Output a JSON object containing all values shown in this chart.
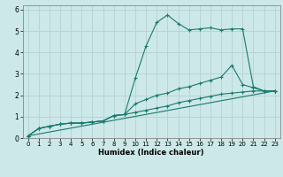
{
  "title": "",
  "xlabel": "Humidex (Indice chaleur)",
  "bg_color": "#cce8e8",
  "grid_color": "#b8d4d4",
  "line_color": "#1a7a6e",
  "xlim": [
    -0.5,
    23.5
  ],
  "ylim": [
    0,
    6.2
  ],
  "xticks": [
    0,
    1,
    2,
    3,
    4,
    5,
    6,
    7,
    8,
    9,
    10,
    11,
    12,
    13,
    14,
    15,
    16,
    17,
    18,
    19,
    20,
    21,
    22,
    23
  ],
  "yticks": [
    0,
    1,
    2,
    3,
    4,
    5,
    6
  ],
  "series": [
    {
      "x": [
        0,
        1,
        2,
        3,
        4,
        5,
        6,
        7,
        8,
        9,
        10,
        11,
        12,
        13,
        14,
        15,
        16,
        17,
        18,
        19,
        20,
        21,
        22,
        23
      ],
      "y": [
        0.1,
        0.45,
        0.55,
        0.65,
        0.7,
        0.7,
        0.75,
        0.8,
        1.05,
        1.1,
        2.8,
        4.3,
        5.4,
        5.75,
        5.35,
        5.05,
        5.1,
        5.15,
        5.05,
        5.1,
        5.1,
        2.4,
        2.2,
        2.2
      ]
    },
    {
      "x": [
        0,
        1,
        2,
        3,
        4,
        5,
        6,
        7,
        8,
        9,
        10,
        11,
        12,
        13,
        14,
        15,
        16,
        17,
        18,
        19,
        20,
        21,
        22,
        23
      ],
      "y": [
        0.1,
        0.45,
        0.55,
        0.65,
        0.7,
        0.7,
        0.75,
        0.8,
        1.05,
        1.1,
        1.6,
        1.8,
        2.0,
        2.1,
        2.3,
        2.4,
        2.55,
        2.7,
        2.85,
        3.4,
        2.5,
        2.35,
        2.2,
        2.2
      ]
    },
    {
      "x": [
        0,
        1,
        2,
        3,
        4,
        5,
        6,
        7,
        8,
        9,
        10,
        11,
        12,
        13,
        14,
        15,
        16,
        17,
        18,
        19,
        20,
        21,
        22,
        23
      ],
      "y": [
        0.1,
        0.45,
        0.55,
        0.65,
        0.7,
        0.7,
        0.75,
        0.8,
        1.05,
        1.1,
        1.2,
        1.3,
        1.4,
        1.5,
        1.65,
        1.75,
        1.85,
        1.95,
        2.05,
        2.1,
        2.15,
        2.2,
        2.2,
        2.2
      ]
    },
    {
      "x": [
        0,
        23
      ],
      "y": [
        0.1,
        2.2
      ]
    }
  ]
}
